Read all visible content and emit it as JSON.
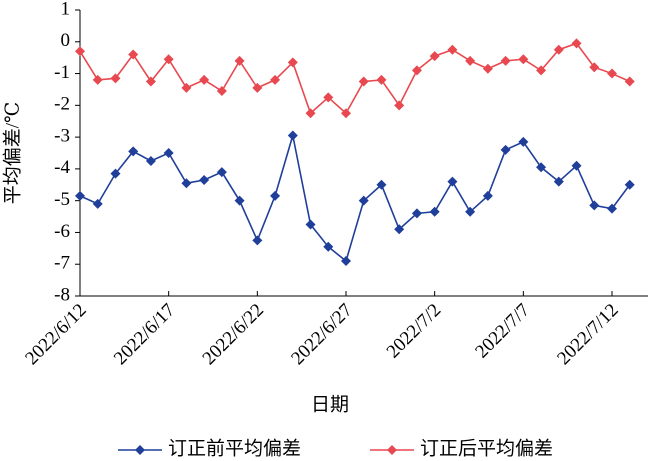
{
  "chart_data": {
    "type": "line",
    "xlabel": "日期",
    "ylabel": "平均偏差/℃",
    "categories": [
      "2022/6/12",
      null,
      null,
      null,
      null,
      "2022/6/17",
      null,
      null,
      null,
      null,
      "2022/6/22",
      null,
      null,
      null,
      null,
      "2022/6/27",
      null,
      null,
      null,
      null,
      "2022/7/2",
      null,
      null,
      null,
      null,
      "2022/7/7",
      null,
      null,
      null,
      null,
      "2022/7/12",
      null
    ],
    "series": [
      {
        "name": "订正前平均偏差",
        "color": "#1f3f9a",
        "values": [
          -4.85,
          -5.1,
          -4.15,
          -3.45,
          -3.75,
          -3.5,
          -4.45,
          -4.35,
          -4.1,
          -5.0,
          -6.25,
          -4.85,
          -2.95,
          -5.75,
          -6.45,
          -6.9,
          -5.0,
          -4.5,
          -5.9,
          -5.4,
          -5.35,
          -4.4,
          -5.35,
          -4.85,
          -3.4,
          -3.15,
          -3.95,
          -4.4,
          -3.9,
          -5.15,
          -5.25,
          -4.5
        ]
      },
      {
        "name": "订正后平均偏差",
        "color": "#e8484f",
        "values": [
          -0.3,
          -1.2,
          -1.15,
          -0.4,
          -1.25,
          -0.55,
          -1.45,
          -1.2,
          -1.55,
          -0.6,
          -1.45,
          -1.2,
          -0.65,
          -2.25,
          -1.75,
          -2.25,
          -1.25,
          -1.2,
          -2.0,
          -0.9,
          -0.45,
          -0.25,
          -0.6,
          -0.85,
          -0.6,
          -0.55,
          -0.9,
          -0.25,
          -0.05,
          -0.8,
          -1.0,
          -1.25
        ]
      }
    ],
    "ylim": [
      -8,
      1
    ],
    "yticks": [
      -8,
      -7,
      -6,
      -5,
      -4,
      -3,
      -2,
      -1,
      0,
      1
    ],
    "grid": false,
    "legend": "bottom"
  }
}
